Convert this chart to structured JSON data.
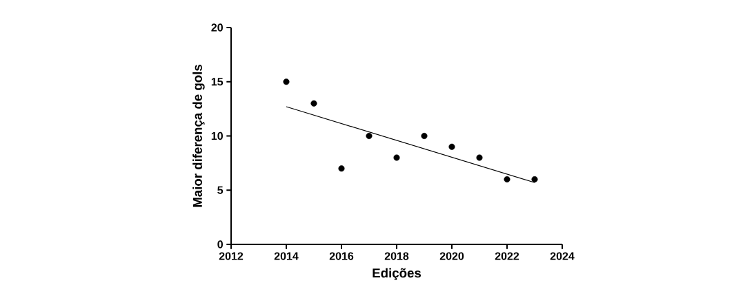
{
  "chart_data": {
    "type": "scatter",
    "xlabel": "Edições",
    "ylabel": "Maior diferença de gols",
    "xlim": [
      2012,
      2024
    ],
    "xticks": [
      2012,
      2014,
      2016,
      2018,
      2020,
      2022,
      2024
    ],
    "ylim": [
      0,
      20
    ],
    "yticks": [
      0,
      5,
      10,
      15,
      20
    ],
    "grid": false,
    "series": [
      {
        "color": "#000000",
        "marker": "circle",
        "x": [
          2014,
          2015,
          2016,
          2017,
          2018,
          2019,
          2020,
          2021,
          2022,
          2023
        ],
        "values": [
          15,
          13,
          7,
          10,
          8,
          10,
          9,
          8,
          6,
          6
        ]
      },
      {
        "type": "line",
        "color": "#000000",
        "marker": "none",
        "line_style": "solid",
        "x": [
          2014,
          2023
        ],
        "values": [
          12.7,
          5.7
        ]
      }
    ]
  }
}
